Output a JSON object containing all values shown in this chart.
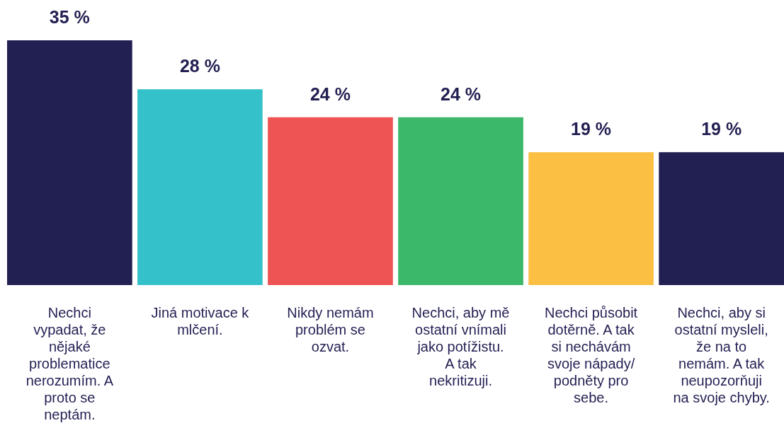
{
  "chart_data": {
    "type": "bar",
    "categories": [
      "Nechci vypadat, že nějaké problematice nerozumím. A proto se neptám.",
      "Jiná motivace k mlčení.",
      "Nikdy nemám problém se ozvat.",
      "Nechci, aby mě ostatní vnímali jako potížistu. A tak nekritizuji.",
      "Nechci působit dotěrně. A tak si nechávám svoje nápady/ podněty pro sebe.",
      "Nechci, aby si ostatní mysleli, že na to nemám. A tak neupozorňuji na svoje chyby."
    ],
    "values": [
      35,
      28,
      24,
      24,
      19,
      19
    ],
    "colors": [
      "#221f52",
      "#35c1ca",
      "#ef5455",
      "#3cb86a",
      "#fbbf44",
      "#221f52"
    ],
    "value_labels": [
      "35 %",
      "28 %",
      "24 %",
      "24 %",
      "19 %",
      "19 %"
    ]
  }
}
